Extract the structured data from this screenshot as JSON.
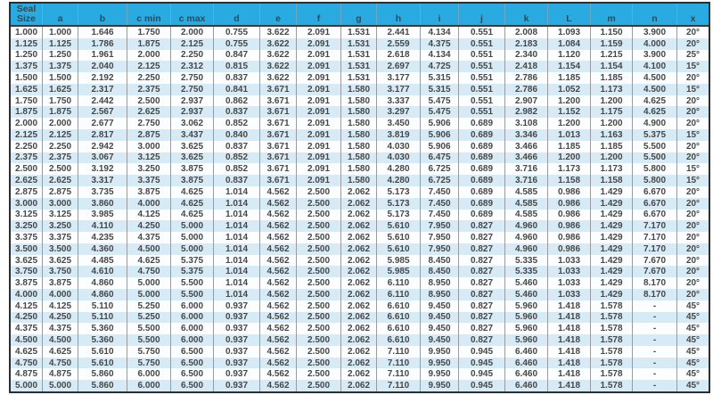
{
  "colors": {
    "header_bg": "#29abe2",
    "stripe_blue": "#d6ebf6",
    "stripe_white": "#fbfdfe",
    "border_dark": "#2e2e2e",
    "text": "#474747"
  },
  "table": {
    "columns": [
      "Seal Size",
      "a",
      "b",
      "c min",
      "c max",
      "d",
      "e",
      "f",
      "g",
      "h",
      "i",
      "j",
      "k",
      "L",
      "m",
      "n",
      "x"
    ],
    "rows": [
      [
        "1.000",
        "1.000",
        "1.646",
        "1.750",
        "2.000",
        "0.755",
        "3.622",
        "2.091",
        "1.531",
        "2.441",
        "4.134",
        "0.551",
        "2.008",
        "1.093",
        "1.150",
        "3.900",
        "20°"
      ],
      [
        "1.125",
        "1.125",
        "1.786",
        "1.875",
        "2.125",
        "0.755",
        "3.622",
        "2.091",
        "1.531",
        "2.559",
        "4.375",
        "0.551",
        "2.183",
        "1.084",
        "1.159",
        "4.000",
        "20°"
      ],
      [
        "1.250",
        "1.250",
        "1.961",
        "2.000",
        "2.250",
        "0.847",
        "3.622",
        "2.091",
        "1.531",
        "2.618",
        "4.134",
        "0.551",
        "2.340",
        "1.120",
        "1.215",
        "3.900",
        "25°"
      ],
      [
        "1.375",
        "1.375",
        "2.040",
        "2.125",
        "2.312",
        "0.815",
        "3.622",
        "2.091",
        "1.531",
        "2.697",
        "4.725",
        "0.551",
        "2.418",
        "1.154",
        "1.154",
        "4.100",
        "15°"
      ],
      [
        "1.500",
        "1.500",
        "2.192",
        "2.250",
        "2.750",
        "0.837",
        "3.622",
        "2.091",
        "1.531",
        "3.177",
        "5.315",
        "0.551",
        "2.786",
        "1.185",
        "1.185",
        "4.500",
        "20°"
      ],
      [
        "1.625",
        "1.625",
        "2.317",
        "2.375",
        "2.750",
        "0.841",
        "3.671",
        "2.091",
        "1.580",
        "3.177",
        "5.315",
        "0.551",
        "2.786",
        "1.052",
        "1.173",
        "4.500",
        "15°"
      ],
      [
        "1.750",
        "1.750",
        "2.442",
        "2.500",
        "2.937",
        "0.862",
        "3.671",
        "2.091",
        "1.580",
        "3.337",
        "5.475",
        "0.551",
        "2.907",
        "1.200",
        "1.200",
        "4.625",
        "20°"
      ],
      [
        "1.875",
        "1.875",
        "2.567",
        "2.625",
        "2.937",
        "0.837",
        "3.671",
        "2.091",
        "1.580",
        "3.297",
        "5.475",
        "0.551",
        "2.982",
        "1.152",
        "1.175",
        "4.625",
        "20°"
      ],
      [
        "2.000",
        "2.000",
        "2.677",
        "2.750",
        "3.062",
        "0.852",
        "3.671",
        "2.091",
        "1.580",
        "3.450",
        "5.906",
        "0.689",
        "3.108",
        "1.200",
        "1.200",
        "4.900",
        "20°"
      ],
      [
        "2.125",
        "2.125",
        "2.817",
        "2.875",
        "3.437",
        "0.840",
        "3.671",
        "2.091",
        "1.580",
        "3.819",
        "5.906",
        "0.689",
        "3.346",
        "1.013",
        "1.163",
        "5.375",
        "15°"
      ],
      [
        "2.250",
        "2.250",
        "2.942",
        "3.000",
        "3.625",
        "0.837",
        "3.671",
        "2.091",
        "1.580",
        "4.030",
        "5.906",
        "0.689",
        "3.466",
        "1.185",
        "1.185",
        "5.500",
        "20°"
      ],
      [
        "2.375",
        "2.375",
        "3.067",
        "3.125",
        "3.625",
        "0.852",
        "3.671",
        "2.091",
        "1.580",
        "4.030",
        "6.475",
        "0.689",
        "3.466",
        "1.200",
        "1.200",
        "5.500",
        "20°"
      ],
      [
        "2.500",
        "2.500",
        "3.192",
        "3.250",
        "3.875",
        "0.852",
        "3.671",
        "2.091",
        "1.580",
        "4.280",
        "6.725",
        "0.689",
        "3.716",
        "1.173",
        "1.173",
        "5.800",
        "15°"
      ],
      [
        "2.625",
        "2.625",
        "3.317",
        "3.375",
        "3.875",
        "0.837",
        "3.671",
        "2.091",
        "1.580",
        "4.280",
        "6.725",
        "0.689",
        "3.716",
        "1.158",
        "1.158",
        "5.800",
        "15°"
      ],
      [
        "2.875",
        "2.875",
        "3.735",
        "3.875",
        "4.625",
        "1.014",
        "4.562",
        "2.500",
        "2.062",
        "5.173",
        "7.450",
        "0.689",
        "4.585",
        "0.986",
        "1.429",
        "6.670",
        "20°"
      ],
      [
        "3.000",
        "3.000",
        "3.860",
        "4.000",
        "4.625",
        "1.014",
        "4.562",
        "2.500",
        "2.062",
        "5.173",
        "7.450",
        "0.689",
        "4.585",
        "0.986",
        "1.429",
        "6.670",
        "20°"
      ],
      [
        "3.125",
        "3.125",
        "3.985",
        "4.125",
        "4.625",
        "1.014",
        "4.562",
        "2.500",
        "2.062",
        "5.173",
        "7.450",
        "0.689",
        "4.585",
        "0.986",
        "1.429",
        "6.670",
        "20°"
      ],
      [
        "3.250",
        "3.250",
        "4.110",
        "4.250",
        "5.000",
        "1.014",
        "4.562",
        "2.500",
        "2.062",
        "5.610",
        "7.950",
        "0.827",
        "4.960",
        "0.986",
        "1.429",
        "7.170",
        "20°"
      ],
      [
        "3.375",
        "3.375",
        "4.235",
        "4.375",
        "5.000",
        "1.014",
        "4.562",
        "2.500",
        "2.062",
        "5.610",
        "7.950",
        "0.827",
        "4.960",
        "0.986",
        "1.429",
        "7.170",
        "20°"
      ],
      [
        "3.500",
        "3.500",
        "4.360",
        "4.500",
        "5.000",
        "1.014",
        "4.562",
        "2.500",
        "2.062",
        "5.610",
        "7.950",
        "0.827",
        "4.960",
        "0.986",
        "1.429",
        "7.170",
        "20°"
      ],
      [
        "3.625",
        "3.625",
        "4.485",
        "4.625",
        "5.375",
        "1.014",
        "4.562",
        "2.500",
        "2.062",
        "5.985",
        "8.450",
        "0.827",
        "5.335",
        "1.033",
        "1.429",
        "7.670",
        "20°"
      ],
      [
        "3.750",
        "3.750",
        "4.610",
        "4.750",
        "5.375",
        "1.014",
        "4.562",
        "2.500",
        "2.062",
        "5.985",
        "8.450",
        "0.827",
        "5.335",
        "1.033",
        "1.429",
        "7.670",
        "20°"
      ],
      [
        "3.875",
        "3.875",
        "4.860",
        "5.000",
        "5.500",
        "1.014",
        "4.562",
        "2.500",
        "2.062",
        "6.110",
        "8.950",
        "0.827",
        "5.460",
        "1.033",
        "1.429",
        "8.170",
        "20°"
      ],
      [
        "4.000",
        "4.000",
        "4.860",
        "5.000",
        "5.500",
        "1.014",
        "4.562",
        "2.500",
        "2.062",
        "6.110",
        "8.950",
        "0.827",
        "5.460",
        "1.033",
        "1.429",
        "8.170",
        "20°"
      ],
      [
        "4.125",
        "4.125",
        "5.110",
        "5.250",
        "6.000",
        "0.937",
        "4.562",
        "2.500",
        "2.062",
        "6.610",
        "9.450",
        "0.827",
        "5.960",
        "1.418",
        "1.578",
        "-",
        "45°"
      ],
      [
        "4.250",
        "4.250",
        "5.110",
        "5.250",
        "6.000",
        "0.937",
        "4.562",
        "2.500",
        "2.062",
        "6.610",
        "9.450",
        "0.827",
        "5.960",
        "1.418",
        "1.578",
        "-",
        "45°"
      ],
      [
        "4.375",
        "4.375",
        "5.360",
        "5.500",
        "6.000",
        "0.937",
        "4.562",
        "2.500",
        "2.062",
        "6.610",
        "9.450",
        "0.827",
        "5.960",
        "1.418",
        "1.578",
        "-",
        "45°"
      ],
      [
        "4.500",
        "4.500",
        "5.360",
        "5.500",
        "6.000",
        "0.937",
        "4.562",
        "2.500",
        "2.062",
        "6.610",
        "9.450",
        "0.827",
        "5.960",
        "1.418",
        "1.578",
        "-",
        "45°"
      ],
      [
        "4.625",
        "4.625",
        "5.610",
        "5.750",
        "6.500",
        "0.937",
        "4.562",
        "2.500",
        "2.062",
        "7.110",
        "9.950",
        "0.945",
        "6.460",
        "1.418",
        "1.578",
        "-",
        "45°"
      ],
      [
        "4.750",
        "4.750",
        "5.610",
        "5.750",
        "6.500",
        "0.937",
        "4.562",
        "2.500",
        "2.062",
        "7.110",
        "9.950",
        "0.945",
        "6.460",
        "1.418",
        "1.578",
        "-",
        "45°"
      ],
      [
        "4.875",
        "4.875",
        "5.860",
        "6.000",
        "6.500",
        "0.937",
        "4.562",
        "2.500",
        "2.062",
        "7.110",
        "9.950",
        "0.945",
        "6.460",
        "1.418",
        "1.578",
        "-",
        "45°"
      ],
      [
        "5.000",
        "5.000",
        "5.860",
        "6.000",
        "6.500",
        "0.937",
        "4.562",
        "2.500",
        "2.062",
        "7.110",
        "9.950",
        "0.945",
        "6.460",
        "1.418",
        "1.578",
        "-",
        "45°"
      ]
    ]
  }
}
